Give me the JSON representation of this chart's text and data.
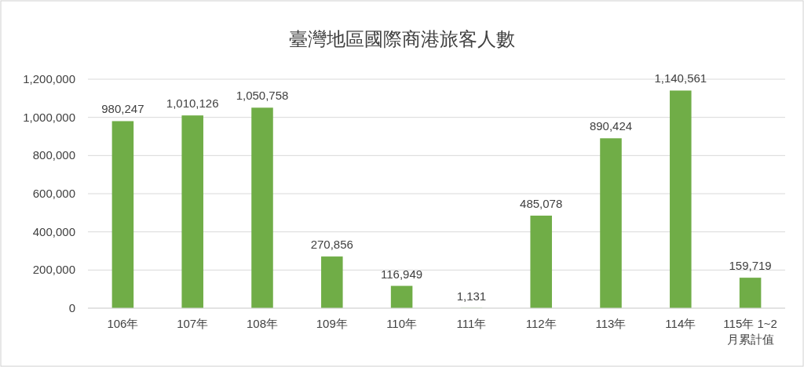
{
  "chart_data": {
    "type": "bar",
    "title": "臺灣地區國際商港旅客人數",
    "categories": [
      "106年",
      "107年",
      "108年",
      "109年",
      "110年",
      "111年",
      "112年",
      "113年",
      "114年",
      "115年 1~2月累計值"
    ],
    "values": [
      980247,
      1010126,
      1050758,
      270856,
      116949,
      1131,
      485078,
      890424,
      1140561,
      159719
    ],
    "color": "#70ad47",
    "ylim": [
      0,
      1200000
    ],
    "yticks": [
      {
        "value": 0,
        "label": "0"
      },
      {
        "value": 200000,
        "label": "200,000"
      },
      {
        "value": 400000,
        "label": "400,000"
      },
      {
        "value": 600000,
        "label": "600,000"
      },
      {
        "value": 800000,
        "label": "800,000"
      },
      {
        "value": 1000000,
        "label": "1,000,000"
      },
      {
        "value": 1200000,
        "label": "1,200,000"
      }
    ],
    "value_labels": [
      "980,247",
      "1,010,126",
      "1,050,758",
      "270,856",
      "116,949",
      "1,131",
      "485,078",
      "890,424",
      "1,140,561",
      "159,719"
    ],
    "grid": "y"
  }
}
